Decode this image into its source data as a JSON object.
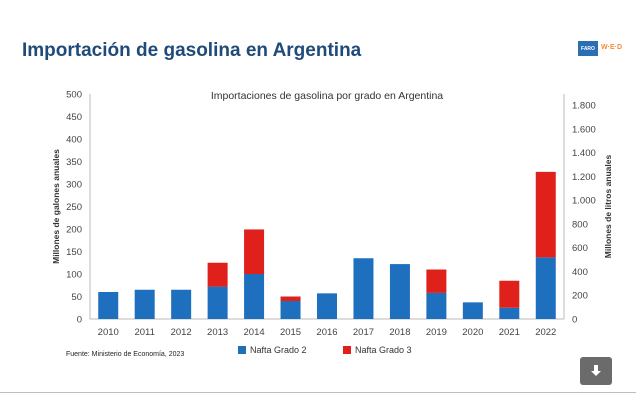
{
  "page": {
    "title": "Importación de gasolina en Argentina",
    "source": "Fuente: Ministerio de Economía, 2023",
    "logo_text": "FARO",
    "logo_accent": "W·E·D"
  },
  "chart_data": {
    "type": "bar",
    "stacked": true,
    "title": "Importaciones de gasolina por grado en Argentina",
    "ylabel": "Millones de galones anuales",
    "y2label": "Millones de litros anuales",
    "categories": [
      "2010",
      "2011",
      "2012",
      "2013",
      "2014",
      "2015",
      "2016",
      "2017",
      "2018",
      "2019",
      "2020",
      "2021",
      "2022"
    ],
    "series": [
      {
        "name": "Nafta Grado 2",
        "color": "#1f6fbf",
        "values": [
          60,
          65,
          65,
          72,
          100,
          40,
          57,
          135,
          122,
          58,
          37,
          25,
          137
        ]
      },
      {
        "name": "Nafta Grado 3",
        "color": "#e0201b",
        "values": [
          0,
          0,
          0,
          53,
          99,
          10,
          0,
          0,
          0,
          52,
          0,
          60,
          190
        ]
      }
    ],
    "ylim": [
      0,
      500
    ],
    "yticks": [
      0,
      50,
      100,
      150,
      200,
      250,
      300,
      350,
      400,
      450,
      500
    ],
    "y2lim": [
      0,
      1892.7
    ],
    "y2ticks": [
      0,
      200,
      400,
      600,
      800,
      1000,
      1200,
      1400,
      1600,
      1800
    ],
    "y2ticklabels": [
      "0",
      "200",
      "400",
      "600",
      "800",
      "1.000",
      "1.200",
      "1.400",
      "1.600",
      "1.800"
    ],
    "grid": false,
    "legend_position": "bottom"
  }
}
